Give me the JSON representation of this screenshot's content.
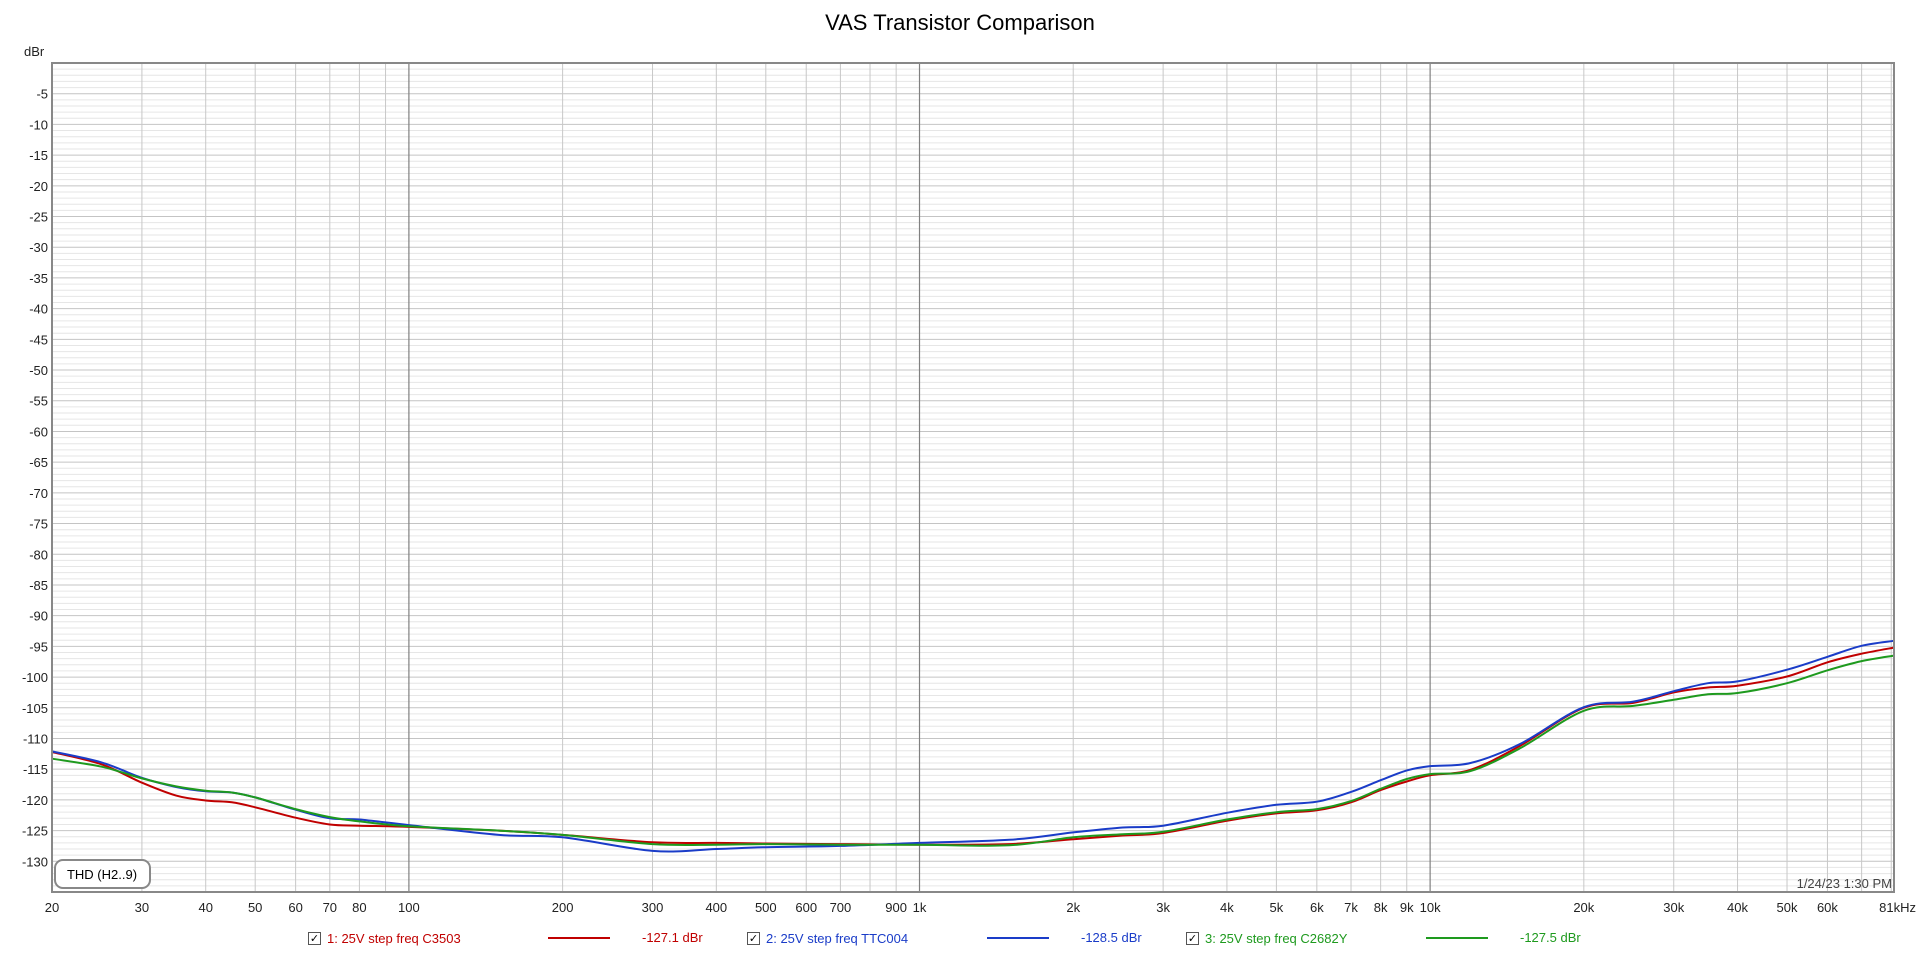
{
  "chart_data": {
    "type": "line",
    "title": "VAS Transistor Comparison",
    "y_unit": "dBr",
    "x_unit": "kHz",
    "x_scale": "log",
    "xlim": [
      20,
      81000
    ],
    "ylim": [
      -135,
      0
    ],
    "grid": true,
    "y_ticks": [
      -5,
      -10,
      -15,
      -20,
      -25,
      -30,
      -35,
      -40,
      -45,
      -50,
      -55,
      -60,
      -65,
      -70,
      -75,
      -80,
      -85,
      -90,
      -95,
      -100,
      -105,
      -110,
      -115,
      -120,
      -125,
      -130
    ],
    "x_ticks": [
      {
        "v": 20,
        "label": "20"
      },
      {
        "v": 30,
        "label": "30"
      },
      {
        "v": 40,
        "label": "40"
      },
      {
        "v": 50,
        "label": "50"
      },
      {
        "v": 60,
        "label": "60"
      },
      {
        "v": 70,
        "label": "70"
      },
      {
        "v": 80,
        "label": "80"
      },
      {
        "v": 100,
        "label": "100"
      },
      {
        "v": 200,
        "label": "200"
      },
      {
        "v": 300,
        "label": "300"
      },
      {
        "v": 400,
        "label": "400"
      },
      {
        "v": 500,
        "label": "500"
      },
      {
        "v": 600,
        "label": "600"
      },
      {
        "v": 700,
        "label": "700"
      },
      {
        "v": 900,
        "label": "900"
      },
      {
        "v": 1000,
        "label": "1k"
      },
      {
        "v": 2000,
        "label": "2k"
      },
      {
        "v": 3000,
        "label": "3k"
      },
      {
        "v": 4000,
        "label": "4k"
      },
      {
        "v": 5000,
        "label": "5k"
      },
      {
        "v": 6000,
        "label": "6k"
      },
      {
        "v": 7000,
        "label": "7k"
      },
      {
        "v": 8000,
        "label": "8k"
      },
      {
        "v": 9000,
        "label": "9k"
      },
      {
        "v": 10000,
        "label": "10k"
      },
      {
        "v": 20000,
        "label": "20k"
      },
      {
        "v": 30000,
        "label": "30k"
      },
      {
        "v": 40000,
        "label": "40k"
      },
      {
        "v": 50000,
        "label": "50k"
      },
      {
        "v": 60000,
        "label": "60k"
      },
      {
        "v": 81000,
        "label": "81kHz"
      }
    ],
    "x": [
      20,
      25,
      30,
      35,
      40,
      45,
      50,
      60,
      70,
      80,
      100,
      150,
      200,
      300,
      400,
      500,
      700,
      1000,
      1500,
      2000,
      2500,
      3000,
      4000,
      5000,
      6000,
      7000,
      8000,
      9000,
      10000,
      12000,
      15000,
      20000,
      25000,
      30000,
      35000,
      40000,
      50000,
      60000,
      70000,
      81000
    ],
    "series": [
      {
        "name": "1: 25V step freq C3503",
        "reading": "-127.1 dBr",
        "color": "#c00000",
        "values": [
          -112.2,
          -114.2,
          -117.2,
          -119.3,
          -120.1,
          -120.4,
          -121.2,
          -122.9,
          -124.0,
          -124.2,
          -124.4,
          -125.0,
          -125.7,
          -126.9,
          -127.0,
          -127.1,
          -127.2,
          -127.3,
          -127.2,
          -126.4,
          -125.8,
          -125.4,
          -123.4,
          -122.2,
          -121.7,
          -120.4,
          -118.4,
          -117.0,
          -116.0,
          -115.1,
          -111.2,
          -105.0,
          -104.2,
          -102.5,
          -101.7,
          -101.4,
          -99.9,
          -97.6,
          -96.2,
          -95.2
        ]
      },
      {
        "name": "2: 25V step freq TTC004",
        "reading": "-128.5 dBr",
        "color": "#1a3cc8",
        "values": [
          -112.1,
          -113.9,
          -116.4,
          -117.9,
          -118.6,
          -118.8,
          -119.6,
          -121.6,
          -123.0,
          -123.2,
          -124.1,
          -125.7,
          -126.1,
          -128.3,
          -128.0,
          -127.7,
          -127.5,
          -127.0,
          -126.5,
          -125.3,
          -124.5,
          -124.2,
          -122.1,
          -120.8,
          -120.3,
          -118.7,
          -116.8,
          -115.2,
          -114.5,
          -114.0,
          -110.9,
          -104.9,
          -104.0,
          -102.3,
          -101.0,
          -100.7,
          -98.8,
          -96.7,
          -94.9,
          -94.1
        ]
      },
      {
        "name": "3: 25V step freq C2682Y",
        "reading": "-127.5 dBr",
        "color": "#1e9a1e",
        "values": [
          -113.3,
          -114.6,
          -116.5,
          -117.8,
          -118.5,
          -118.8,
          -119.6,
          -121.5,
          -122.8,
          -123.5,
          -124.3,
          -125.0,
          -125.7,
          -127.2,
          -127.3,
          -127.2,
          -127.3,
          -127.3,
          -127.4,
          -126.1,
          -125.6,
          -125.2,
          -123.2,
          -122.0,
          -121.5,
          -120.2,
          -118.2,
          -116.6,
          -115.8,
          -115.3,
          -111.6,
          -105.5,
          -104.7,
          -103.7,
          -102.8,
          -102.6,
          -101.0,
          -98.9,
          -97.4,
          -96.5
        ]
      }
    ]
  },
  "badge": "THD (H2..9)",
  "timestamp": "1/24/23 1:30 PM"
}
